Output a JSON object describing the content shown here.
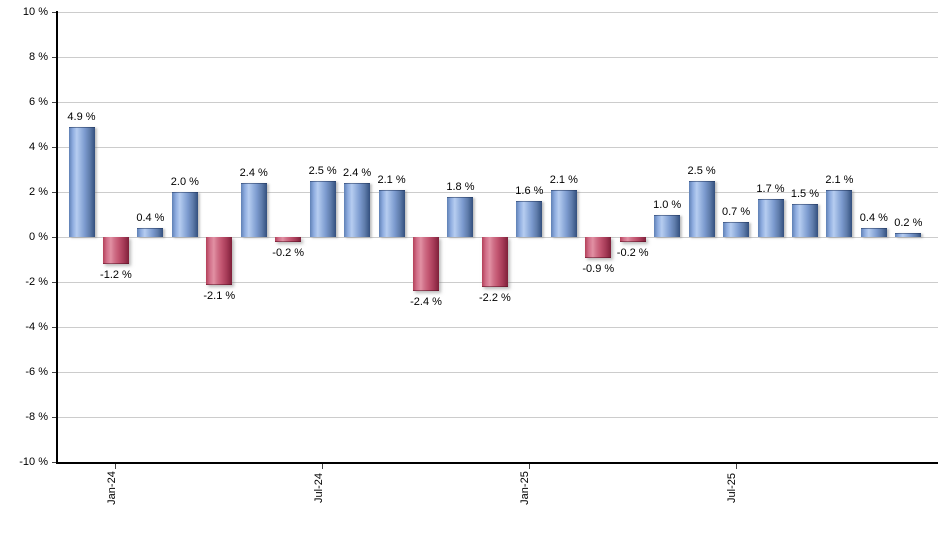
{
  "chart_data": {
    "type": "bar",
    "title": "",
    "grid": true,
    "legend": false,
    "y_axis": {
      "range": [
        -10,
        10
      ],
      "unit": "%",
      "ticks": [
        {
          "value": 10,
          "label": "10 %"
        },
        {
          "value": 8,
          "label": "8 %"
        },
        {
          "value": 6,
          "label": "6 %"
        },
        {
          "value": 4,
          "label": "4 %"
        },
        {
          "value": 2,
          "label": "2 %"
        },
        {
          "value": 0,
          "label": "0 %"
        },
        {
          "value": -2,
          "label": "-2 %"
        },
        {
          "value": -4,
          "label": "-4 %"
        },
        {
          "value": -6,
          "label": "-6 %"
        },
        {
          "value": -8,
          "label": "-8 %"
        },
        {
          "value": -10,
          "label": "-10 %"
        }
      ]
    },
    "x_axis": {
      "ticks": [
        {
          "bar_index": 1,
          "label": "Jan-24"
        },
        {
          "bar_index": 7,
          "label": "Jul-24"
        },
        {
          "bar_index": 13,
          "label": "Jan-25"
        },
        {
          "bar_index": 19,
          "label": "Jul-25"
        }
      ]
    },
    "bars": [
      {
        "value": 4.9,
        "label": "4.9 %"
      },
      {
        "value": -1.2,
        "label": "-1.2 %"
      },
      {
        "value": 0.4,
        "label": "0.4 %"
      },
      {
        "value": 2.0,
        "label": "2.0 %"
      },
      {
        "value": -2.1,
        "label": "-2.1 %"
      },
      {
        "value": 2.4,
        "label": "2.4 %"
      },
      {
        "value": -0.2,
        "label": "-0.2 %"
      },
      {
        "value": 2.5,
        "label": "2.5 %"
      },
      {
        "value": 2.4,
        "label": "2.4 %"
      },
      {
        "value": 2.1,
        "label": "2.1 %"
      },
      {
        "value": -2.4,
        "label": "-2.4 %"
      },
      {
        "value": 1.8,
        "label": "1.8 %"
      },
      {
        "value": -2.2,
        "label": "-2.2 %"
      },
      {
        "value": 1.6,
        "label": "1.6 %"
      },
      {
        "value": 2.1,
        "label": "2.1 %"
      },
      {
        "value": -0.9,
        "label": "-0.9 %"
      },
      {
        "value": -0.2,
        "label": "-0.2 %"
      },
      {
        "value": 1.0,
        "label": "1.0 %"
      },
      {
        "value": 2.5,
        "label": "2.5 %"
      },
      {
        "value": 0.7,
        "label": "0.7 %"
      },
      {
        "value": 1.7,
        "label": "1.7 %"
      },
      {
        "value": 1.5,
        "label": "1.5 %"
      },
      {
        "value": 2.1,
        "label": "2.1 %"
      },
      {
        "value": 0.4,
        "label": "0.4 %"
      },
      {
        "value": 0.2,
        "label": "0.2 %"
      }
    ],
    "colors": {
      "positive_bar": "#7d9cd0",
      "positive_bar_highlight": "#b6cdf0",
      "positive_bar_edge": "#33507e",
      "negative_bar": "#c25570",
      "negative_bar_highlight": "#e190a3",
      "negative_bar_edge": "#7e2039",
      "gridline": "#cccccc",
      "axis": "#000000",
      "label_text": "#000000"
    }
  }
}
